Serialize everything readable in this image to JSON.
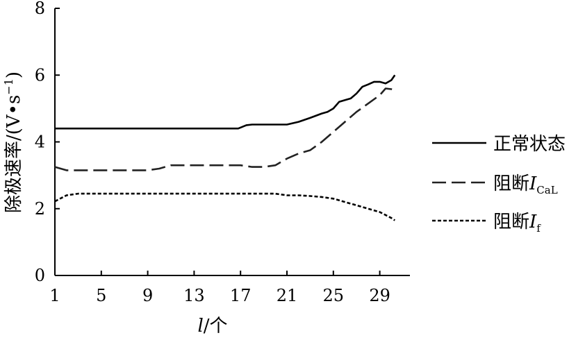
{
  "chart_data": {
    "type": "line",
    "xlabel_var": "l",
    "xlabel_rest": "/个",
    "ylabel_main": "除极速率/(V•s",
    "ylabel_sup": "−1",
    "ylabel_close": ")",
    "xlim": [
      1,
      31
    ],
    "ylim": [
      0,
      8
    ],
    "xticks": [
      1,
      5,
      9,
      13,
      17,
      21,
      25,
      29
    ],
    "yticks": [
      0,
      2,
      4,
      6,
      8
    ],
    "grid": false,
    "legend_position": "right",
    "series": [
      {
        "name": "正常状态",
        "label_parts": {
          "main": "正常状态",
          "var": "",
          "sub": ""
        },
        "style": "solid",
        "x": [
          1,
          2,
          4,
          6,
          8,
          10,
          12,
          14,
          16,
          16.8,
          17.5,
          18,
          19,
          20,
          21,
          22,
          23,
          24,
          24.5,
          25,
          25.5,
          26,
          26.5,
          27,
          27.5,
          28,
          28.5,
          29,
          29.5,
          30,
          30.3
        ],
        "y": [
          4.4,
          4.4,
          4.4,
          4.4,
          4.4,
          4.4,
          4.4,
          4.4,
          4.4,
          4.4,
          4.5,
          4.52,
          4.52,
          4.52,
          4.52,
          4.6,
          4.72,
          4.85,
          4.9,
          5.0,
          5.2,
          5.25,
          5.3,
          5.45,
          5.65,
          5.72,
          5.8,
          5.8,
          5.75,
          5.85,
          6.0
        ]
      },
      {
        "name": "阻断I CaL",
        "label_parts": {
          "main": "阻断",
          "var": "I",
          "sub": "CaL"
        },
        "style": "dashed",
        "x": [
          1,
          2,
          3,
          5,
          7,
          9,
          10,
          11,
          13,
          15,
          17,
          18,
          19,
          20,
          21,
          22,
          23,
          24,
          25,
          26,
          27,
          28,
          29,
          29.5,
          30,
          30.3
        ],
        "y": [
          3.25,
          3.15,
          3.15,
          3.15,
          3.15,
          3.15,
          3.2,
          3.3,
          3.3,
          3.3,
          3.3,
          3.25,
          3.25,
          3.3,
          3.5,
          3.65,
          3.75,
          4.0,
          4.3,
          4.6,
          4.9,
          5.15,
          5.4,
          5.6,
          5.58,
          5.55
        ]
      },
      {
        "name": "阻断I f",
        "label_parts": {
          "main": "阻断",
          "var": "I",
          "sub": "f"
        },
        "style": "dotted",
        "x": [
          1,
          2,
          3,
          5,
          7,
          9,
          11,
          13,
          15,
          17,
          19,
          20,
          21,
          22,
          23,
          24,
          25,
          26,
          27,
          28,
          29,
          30,
          30.3
        ],
        "y": [
          2.22,
          2.4,
          2.45,
          2.45,
          2.45,
          2.45,
          2.45,
          2.45,
          2.45,
          2.45,
          2.45,
          2.45,
          2.4,
          2.4,
          2.38,
          2.35,
          2.3,
          2.2,
          2.1,
          2.0,
          1.9,
          1.72,
          1.65
        ]
      }
    ]
  }
}
